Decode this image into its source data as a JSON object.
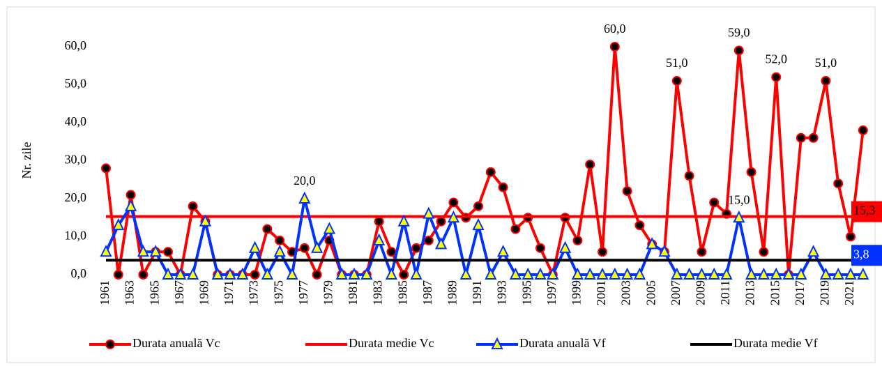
{
  "chart_data": {
    "type": "line",
    "y_label": "Nr. zile",
    "categories": [
      "1961",
      null,
      "1963",
      null,
      "1965",
      null,
      "1967",
      null,
      "1969",
      null,
      "1971",
      null,
      "1973",
      null,
      "1975",
      null,
      "1977",
      null,
      "1979",
      null,
      "1981",
      null,
      "1983",
      null,
      "1985",
      null,
      "1987",
      null,
      "1989",
      null,
      "1991",
      null,
      "1993",
      null,
      "1995",
      null,
      "1997",
      null,
      "1999",
      null,
      "2001",
      null,
      "2003",
      null,
      "2005",
      null,
      "2007",
      null,
      "2009",
      null,
      "2011",
      null,
      "2013",
      null,
      "2015",
      null,
      "2017",
      null,
      "2019",
      null,
      "2021",
      null
    ],
    "ylim": [
      0,
      60
    ],
    "yticks": [
      {
        "value": 0,
        "label": "0,0"
      },
      {
        "value": 10,
        "label": "10,0"
      },
      {
        "value": 20,
        "label": "20,0"
      },
      {
        "value": 30,
        "label": "30,0"
      },
      {
        "value": 40,
        "label": "40,0"
      },
      {
        "value": 50,
        "label": "50,0"
      },
      {
        "value": 60,
        "label": "60,0"
      }
    ],
    "grid": false,
    "legend": "bottom",
    "series": [
      {
        "name": "Durata anuală Vc",
        "color": "#ff0000",
        "marker": "circle",
        "marker_fill": "#000000",
        "values": [
          28,
          0,
          21,
          0,
          6,
          6,
          0,
          18,
          14,
          0,
          0,
          0,
          0,
          12,
          9,
          6,
          7,
          0,
          9,
          0,
          0,
          0,
          14,
          6,
          0,
          7,
          9,
          14,
          19,
          15,
          18,
          27,
          23,
          12,
          15,
          7,
          0,
          15,
          9,
          29,
          6,
          60,
          22,
          13,
          8,
          6,
          51,
          26,
          6,
          19,
          16,
          59,
          27,
          6,
          52,
          0,
          36,
          36,
          51,
          24,
          10,
          38
        ],
        "value_labels": [
          null,
          null,
          null,
          null,
          null,
          null,
          null,
          null,
          null,
          null,
          null,
          null,
          null,
          null,
          null,
          null,
          null,
          null,
          null,
          null,
          null,
          null,
          null,
          null,
          null,
          null,
          null,
          null,
          null,
          null,
          null,
          null,
          null,
          null,
          null,
          null,
          null,
          null,
          null,
          null,
          null,
          "60,0",
          null,
          null,
          null,
          null,
          "51,0",
          null,
          null,
          null,
          null,
          "59,0",
          null,
          null,
          "52,0",
          null,
          null,
          null,
          "51,0",
          null,
          null,
          null
        ]
      },
      {
        "name": "Durata medie Vc",
        "color": "#ff0000",
        "value": 15.3,
        "value_label": "15,3"
      },
      {
        "name": "Durata anuală Vf",
        "color": "#0033ff",
        "marker": "triangle",
        "marker_fill": "#ffff00",
        "values": [
          6,
          13,
          18,
          6,
          6,
          0,
          0,
          0,
          14,
          0,
          0,
          0,
          7,
          0,
          6,
          0,
          20,
          7,
          12,
          0,
          0,
          0,
          9,
          0,
          14,
          0,
          16,
          8,
          15,
          0,
          13,
          0,
          6,
          0,
          0,
          0,
          0,
          7,
          0,
          0,
          0,
          0,
          0,
          0,
          8,
          6,
          0,
          0,
          0,
          0,
          0,
          15,
          0,
          0,
          0,
          0,
          0,
          6,
          0,
          0,
          0,
          0
        ],
        "value_labels": [
          null,
          null,
          null,
          null,
          null,
          null,
          null,
          null,
          null,
          null,
          null,
          null,
          null,
          null,
          null,
          null,
          "20,0",
          null,
          null,
          null,
          null,
          null,
          null,
          null,
          null,
          null,
          null,
          null,
          null,
          null,
          null,
          null,
          null,
          null,
          null,
          null,
          null,
          null,
          null,
          null,
          null,
          null,
          null,
          null,
          null,
          null,
          null,
          null,
          null,
          null,
          null,
          "15,0",
          null,
          null,
          null,
          null,
          null,
          null,
          null,
          null,
          null,
          null
        ]
      },
      {
        "name": "Durata medie Vf",
        "color": "#000000",
        "value": 3.8,
        "value_label": "3,8"
      }
    ]
  }
}
